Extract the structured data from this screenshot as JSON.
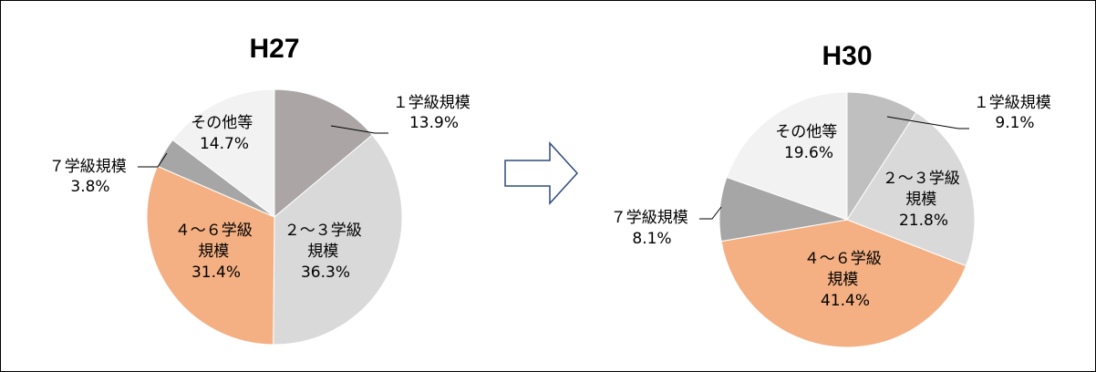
{
  "chart_data": [
    {
      "type": "pie",
      "title": "H27",
      "slices": [
        {
          "name": "１学級規模",
          "value": 13.9,
          "label": "13.9%",
          "color": "#aba6a5"
        },
        {
          "name": "２～３学級規模",
          "value": 36.3,
          "label": "36.3%",
          "color": "#d9d9d9"
        },
        {
          "name": "４～６学級規模",
          "value": 31.4,
          "label": "31.4%",
          "color": "#f4b083"
        },
        {
          "name": "７学級規模",
          "value": 3.8,
          "label": "3.8%",
          "color": "#a6a6a6"
        },
        {
          "name": "その他等",
          "value": 14.7,
          "label": "14.7%",
          "color": "#f2f2f2"
        }
      ],
      "label_lines": {
        "s0": [
          "１学級規模",
          "13.9%"
        ],
        "s1": [
          "２～３学級",
          "規模",
          "36.3%"
        ],
        "s2": [
          "４～６学級",
          "規模",
          "31.4%"
        ],
        "s3": [
          "７学級規模",
          "3.8%"
        ],
        "s4": [
          "その他等",
          "14.7%"
        ]
      }
    },
    {
      "type": "pie",
      "title": "H30",
      "slices": [
        {
          "name": "１学級規模",
          "value": 9.1,
          "label": "9.1%",
          "color": "#bfbfbf"
        },
        {
          "name": "２～３学級規模",
          "value": 21.8,
          "label": "21.8%",
          "color": "#d9d9d9"
        },
        {
          "name": "４～６学級規模",
          "value": 41.4,
          "label": "41.4%",
          "color": "#f4b083"
        },
        {
          "name": "７学級規模",
          "value": 8.1,
          "label": "8.1%",
          "color": "#a6a6a6"
        },
        {
          "name": "その他等",
          "value": 19.6,
          "label": "19.6%",
          "color": "#f2f2f2"
        }
      ],
      "label_lines": {
        "s0": [
          "１学級規模",
          "9.1%"
        ],
        "s1": [
          "２～３学級",
          "規模",
          "21.8%"
        ],
        "s2": [
          "４～６学級",
          "規模",
          "41.4%"
        ],
        "s3": [
          "７学級規模",
          "8.1%"
        ],
        "s4": [
          "その他等",
          "19.6%"
        ]
      }
    }
  ],
  "arrow_icon": "right-arrow-icon"
}
